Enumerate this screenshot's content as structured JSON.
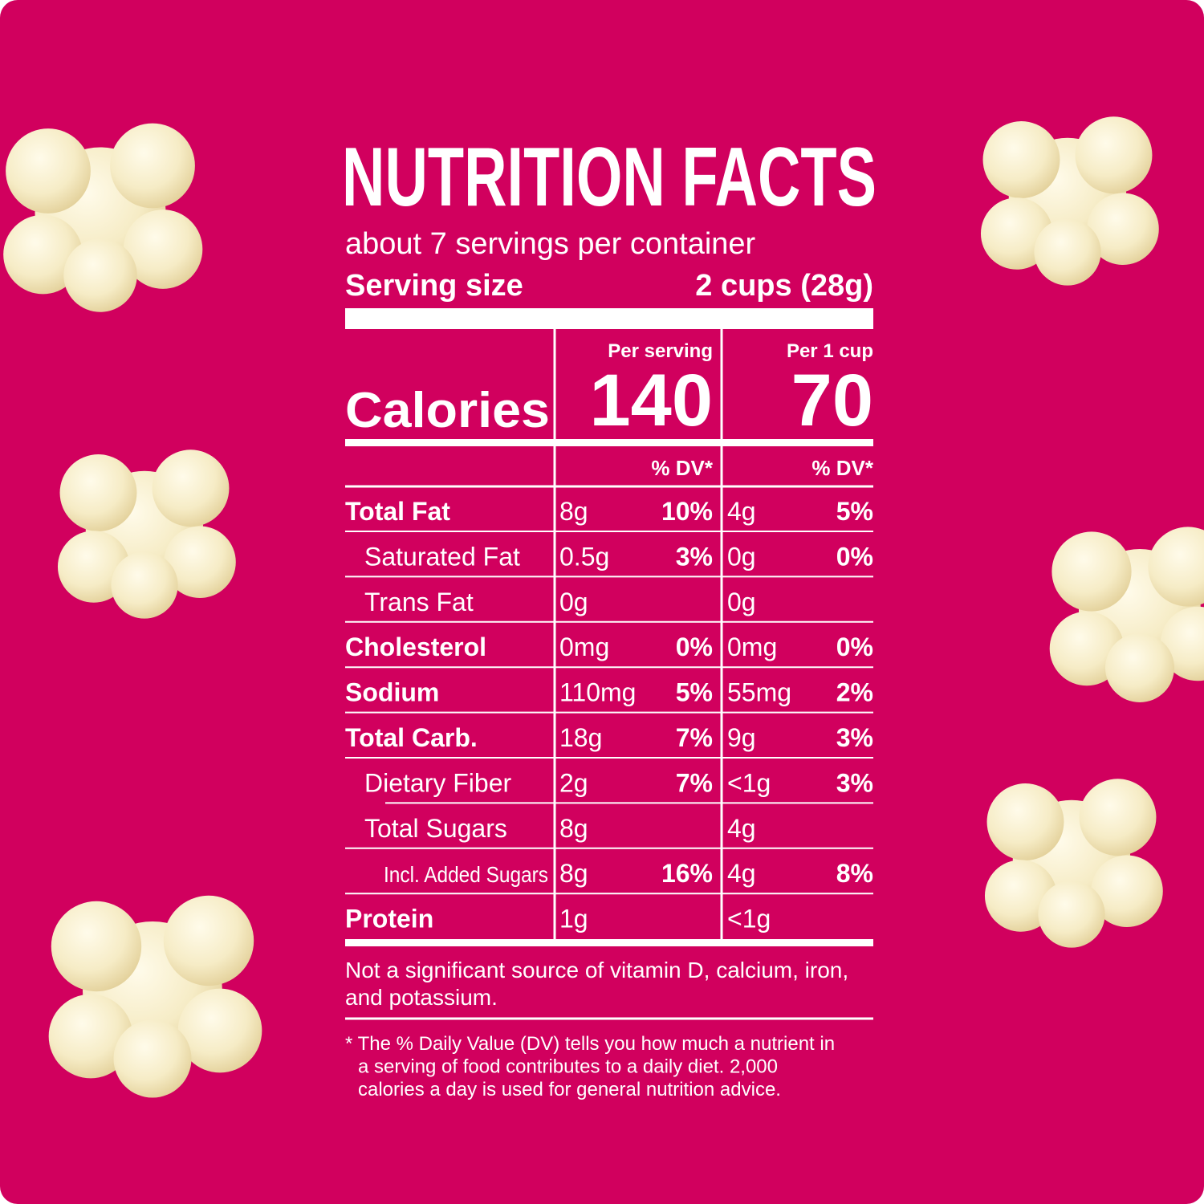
{
  "title": "NUTRITION FACTS",
  "servings": "about 7 servings per container",
  "serving_size": {
    "label": "Serving size",
    "value": "2 cups (28g)"
  },
  "calories": {
    "label": "Calories",
    "columns": [
      {
        "header": "Per serving",
        "value": 140
      },
      {
        "header": "Per 1 cup",
        "value": 70
      }
    ]
  },
  "dv_headers": [
    "% DV*",
    "% DV*"
  ],
  "rows": [
    {
      "name": "Total Fat",
      "per_serving": [
        "8g",
        "10%"
      ],
      "per_cup": [
        "4g",
        "5%"
      ]
    },
    {
      "name": "Saturated Fat",
      "per_serving": [
        "0.5g",
        "3%"
      ],
      "per_cup": [
        "0g",
        "0%"
      ]
    },
    {
      "name": "Trans Fat",
      "per_serving": [
        "0g"
      ],
      "per_cup": [
        "0g"
      ]
    },
    {
      "name": "Cholesterol",
      "per_serving": [
        "0mg",
        "0%"
      ],
      "per_cup": [
        "0mg",
        "0%"
      ]
    },
    {
      "name": "Sodium",
      "per_serving": [
        "110mg",
        "5%"
      ],
      "per_cup": [
        "55mg",
        "2%"
      ]
    },
    {
      "name": "Total Carb.",
      "per_serving": [
        "18g",
        "7%"
      ],
      "per_cup": [
        "9g",
        "3%"
      ]
    },
    {
      "name": "Dietary Fiber",
      "per_serving": [
        "2g",
        "7%"
      ],
      "per_cup": [
        "<1g",
        "3%"
      ]
    },
    {
      "name": "Total Sugars",
      "per_serving": [
        "8g"
      ],
      "per_cup": [
        "4g"
      ]
    },
    {
      "name": "Incl. Added Sugars",
      "per_serving": [
        "8g",
        "16%"
      ],
      "per_cup": [
        "4g",
        "8%"
      ]
    },
    {
      "name": "Protein",
      "per_serving": [
        "1g"
      ],
      "per_cup": [
        "<1g"
      ]
    }
  ],
  "note": [
    "Not a significant source of vitamin D, calcium, iron,",
    "and potassium."
  ],
  "footnote": [
    "* The % Daily Value (DV) tells you how much a nutrient in",
    "a serving of food contributes to a daily diet. 2,000",
    "calories a day is used for general nutrition advice."
  ]
}
